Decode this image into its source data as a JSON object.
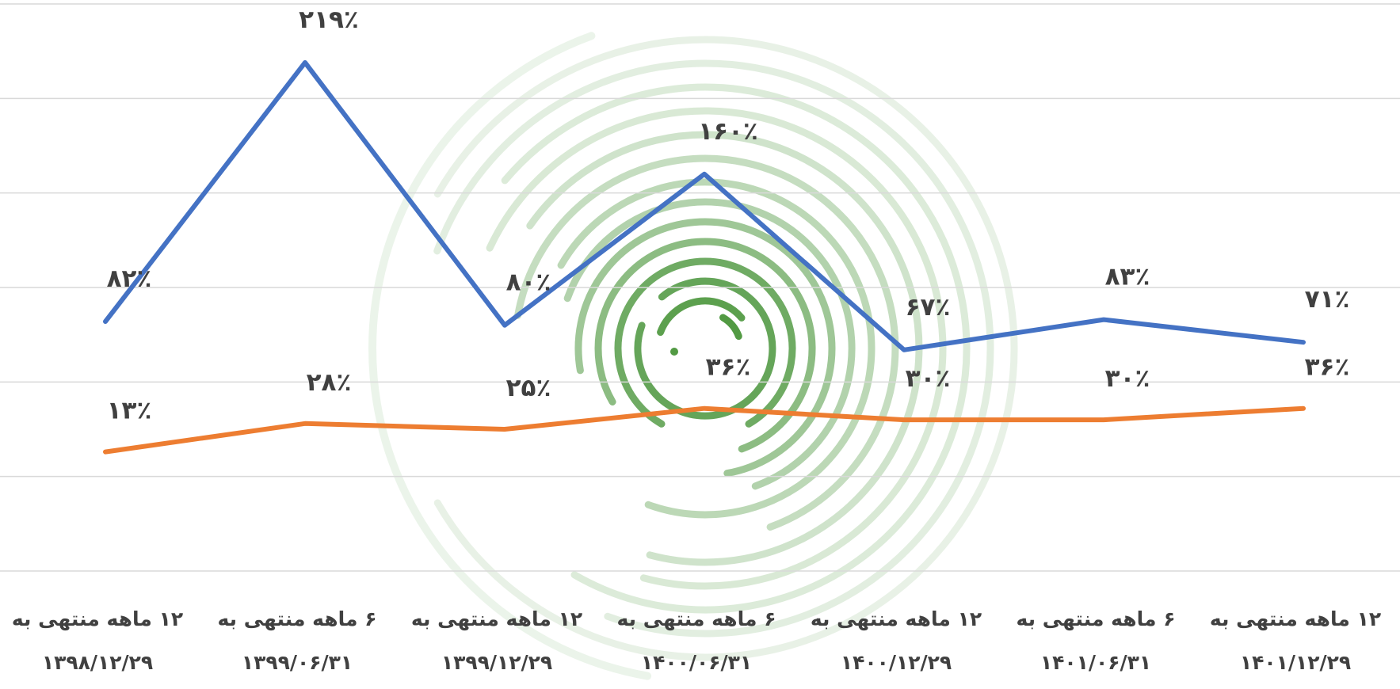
{
  "chart_data": {
    "type": "line",
    "categories": [
      [
        "۱۲ ماهه منتهی به",
        "۱۳۹۸/۱۲/۲۹"
      ],
      [
        "۶ ماهه منتهی به",
        "۱۳۹۹/۰۶/۳۱"
      ],
      [
        "۱۲ ماهه منتهی به",
        "۱۳۹۹/۱۲/۲۹"
      ],
      [
        "۶ ماهه منتهی به",
        "۱۴۰۰/۰۶/۳۱"
      ],
      [
        "۱۲ ماهه منتهی به",
        "۱۴۰۰/۱۲/۲۹"
      ],
      [
        "۶ ماهه منتهی به",
        "۱۴۰۱/۰۶/۳۱"
      ],
      [
        "۱۲ ماهه منتهی به",
        "۱۴۰۱/۱۲/۲۹"
      ]
    ],
    "series": [
      {
        "color": "#4472C4",
        "values": [
          82,
          219,
          80,
          160,
          67,
          83,
          71
        ],
        "labels": [
          "۸۲٪",
          "۲۱۹٪",
          "۸۰٪",
          "۱۶۰٪",
          "۶۷٪",
          "۸۳٪",
          "۷۱٪"
        ]
      },
      {
        "color": "#ED7D31",
        "values": [
          13,
          28,
          25,
          36,
          30,
          30,
          36
        ],
        "labels": [
          "۱۳٪",
          "۲۸٪",
          "۲۵٪",
          "۳۶٪",
          "۳۰٪",
          "۳۰٪",
          "۳۶٪"
        ]
      }
    ],
    "ylim": [
      -50,
      250
    ],
    "grid": true,
    "legend": false,
    "watermark_color": "#3f8f2f"
  }
}
